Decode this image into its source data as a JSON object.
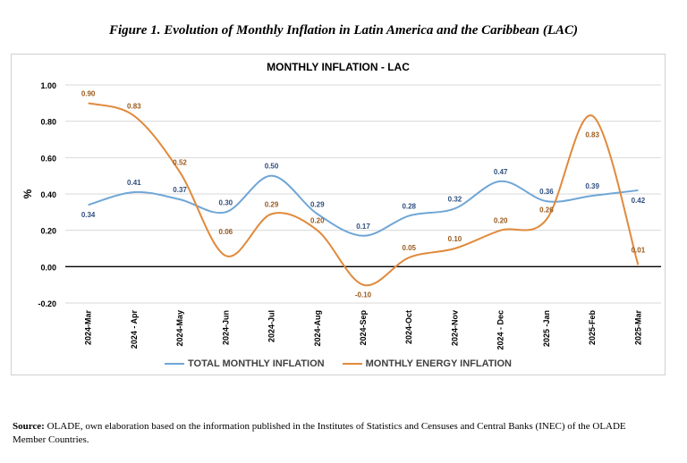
{
  "figure_title": "Figure 1. Evolution of Monthly Inflation in Latin America and the Caribbean (LAC)",
  "source_label": "Source:",
  "source_text": "OLADE, own elaboration based on the information published in the Institutes of Statistics and Censuses and Central Banks (INEC) of the OLADE Member Countries.",
  "colors": {
    "total": "#6fa6d6",
    "energy": "#e08a3c",
    "grid": "#d9d9d9",
    "zero": "#000000"
  },
  "chart_data": {
    "type": "line",
    "title": "MONTHLY INFLATION - LAC",
    "ylabel": "%",
    "xlabel": "",
    "ylim": [
      -0.2,
      1.0
    ],
    "yticks": [
      "1.00",
      "0.80",
      "0.60",
      "0.40",
      "0.20",
      "0.00",
      "-0.20"
    ],
    "ytick_values": [
      1.0,
      0.8,
      0.6,
      0.4,
      0.2,
      0.0,
      -0.2
    ],
    "grid": true,
    "legend_position": "bottom",
    "categories": [
      "2024-Mar",
      "2024 - Apr",
      "2024-May",
      "2024-Jun",
      "2024-Jul",
      "2024-Aug",
      "2024-Sep",
      "2024-Oct",
      "2024-Nov",
      "2024 - Dec",
      "2025 -Jan",
      "2025-Feb",
      "2025-Mar"
    ],
    "series": [
      {
        "name": "TOTAL MONTHLY INFLATION",
        "values": [
          0.34,
          0.41,
          0.37,
          0.3,
          0.5,
          0.29,
          0.17,
          0.28,
          0.32,
          0.47,
          0.36,
          0.39,
          0.42
        ],
        "labels": [
          "0.34",
          "0.41",
          "0.37",
          "0.30",
          "0.50",
          "0.29",
          "0.17",
          "0.28",
          "0.32",
          "0.47",
          "0.36",
          "0.39",
          "0.42"
        ]
      },
      {
        "name": "MONTHLY ENERGY INFLATION",
        "values": [
          0.9,
          0.83,
          0.52,
          0.06,
          0.29,
          0.2,
          -0.1,
          0.05,
          0.1,
          0.2,
          0.26,
          0.83,
          0.01
        ],
        "labels": [
          "0.90",
          "0.83",
          "0.52",
          "0.06",
          "0.29",
          "0.20",
          "-0.10",
          "0.05",
          "0.10",
          "0.20",
          "0.26",
          "0.83",
          "0.01"
        ]
      }
    ]
  }
}
